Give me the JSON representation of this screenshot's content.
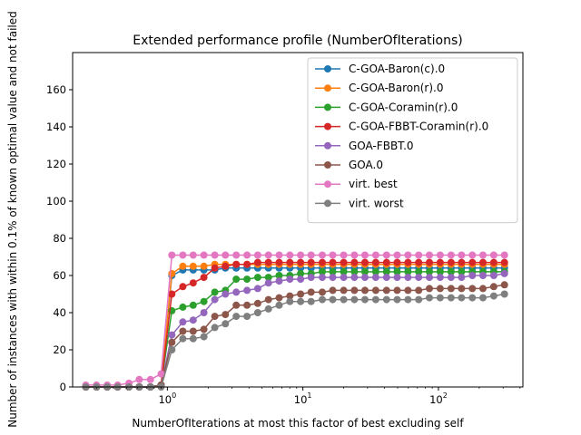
{
  "chart_data": {
    "type": "line",
    "title": "Extended performance profile (NumberOfIterations)",
    "xlabel": "NumberOfIterations at most this factor of best excluding self",
    "ylabel": "Number of instances with within 0.1% of known optimal value and not failed",
    "x_scale": "log",
    "xlim": [
      0.2,
      420
    ],
    "ylim": [
      0,
      180
    ],
    "grid": false,
    "legend_position": "top-right",
    "x_ticks": [
      {
        "value": 1,
        "base": "10",
        "exp": "0"
      },
      {
        "value": 10,
        "base": "10",
        "exp": "1"
      },
      {
        "value": 100,
        "base": "10",
        "exp": "2"
      }
    ],
    "y_ticks": [
      0,
      20,
      40,
      60,
      80,
      100,
      120,
      140,
      160
    ],
    "x": [
      0.25,
      0.3,
      0.36,
      0.43,
      0.52,
      0.62,
      0.75,
      0.9,
      1.08,
      1.3,
      1.55,
      1.86,
      2.24,
      2.68,
      3.22,
      3.87,
      4.64,
      5.57,
      6.68,
      8.02,
      9.62,
      11.5,
      13.9,
      16.6,
      20,
      24,
      28.7,
      34.5,
      41.4,
      49.6,
      59.6,
      71.5,
      85.8,
      103,
      124,
      148,
      178,
      213,
      256,
      307
    ],
    "series": [
      {
        "name": "C-GOA-Baron(c).0",
        "color": "#1f77b4",
        "values": [
          0,
          0,
          0,
          0,
          0,
          0,
          0,
          1,
          60,
          63,
          63,
          63,
          63,
          64,
          64,
          64,
          64,
          64,
          64,
          64,
          64,
          64,
          64,
          64,
          64,
          64,
          64,
          64,
          64,
          64,
          64,
          64,
          64,
          64,
          64,
          64,
          64,
          64,
          64,
          64
        ]
      },
      {
        "name": "C-GOA-Baron(r).0",
        "color": "#ff7f0e",
        "values": [
          0,
          0,
          0,
          0,
          0,
          0,
          0,
          1,
          61,
          65,
          65,
          65,
          66,
          66,
          66,
          66,
          66,
          66,
          66,
          66,
          66,
          66,
          66,
          66,
          66,
          66,
          66,
          66,
          66,
          66,
          66,
          66,
          66,
          66,
          66,
          66,
          66,
          66,
          66,
          66
        ]
      },
      {
        "name": "C-GOA-Coramin(r).0",
        "color": "#2ca02c",
        "values": [
          0,
          0,
          0,
          0,
          0,
          0,
          0,
          1,
          41,
          43,
          44,
          46,
          51,
          52,
          58,
          58,
          59,
          59,
          60,
          60,
          61,
          61,
          62,
          62,
          62,
          62,
          62,
          62,
          62,
          62,
          62,
          62,
          62,
          62,
          62,
          62,
          62,
          62,
          62,
          62
        ]
      },
      {
        "name": "C-GOA-FBBT-Coramin(r).0",
        "color": "#d62728",
        "values": [
          0,
          0,
          0,
          0,
          0,
          0,
          0,
          1,
          50,
          54,
          56,
          59,
          64,
          65,
          66,
          66,
          67,
          67,
          67,
          67,
          67,
          67,
          67,
          67,
          67,
          67,
          67,
          67,
          67,
          67,
          67,
          67,
          67,
          67,
          67,
          67,
          67,
          67,
          67,
          67
        ]
      },
      {
        "name": "GOA-FBBT.0",
        "color": "#9467bd",
        "values": [
          0,
          0,
          0,
          0,
          0,
          0,
          0,
          1,
          28,
          35,
          36,
          40,
          47,
          50,
          51,
          52,
          53,
          56,
          57,
          58,
          58,
          59,
          59,
          59,
          59,
          59,
          59,
          59,
          59,
          59,
          59,
          59,
          59,
          59,
          59,
          59,
          60,
          60,
          60,
          61
        ]
      },
      {
        "name": "GOA.0",
        "color": "#8c564b",
        "values": [
          0,
          0,
          0,
          0,
          0,
          0,
          0,
          1,
          24,
          30,
          30,
          31,
          38,
          39,
          44,
          44,
          45,
          47,
          48,
          49,
          50,
          51,
          51,
          52,
          52,
          52,
          52,
          52,
          52,
          52,
          52,
          52,
          53,
          53,
          53,
          53,
          53,
          53,
          54,
          55
        ]
      },
      {
        "name": "virt. best",
        "color": "#e377c2",
        "values": [
          1,
          1,
          1,
          1,
          2,
          4,
          4,
          7,
          71,
          71,
          71,
          71,
          71,
          71,
          71,
          71,
          71,
          71,
          71,
          71,
          71,
          71,
          71,
          71,
          71,
          71,
          71,
          71,
          71,
          71,
          71,
          71,
          71,
          71,
          71,
          71,
          71,
          71,
          71,
          71
        ]
      },
      {
        "name": "virt. worst",
        "color": "#7f7f7f",
        "values": [
          0,
          0,
          0,
          0,
          0,
          0,
          0,
          0,
          20,
          26,
          26,
          27,
          32,
          34,
          38,
          38,
          40,
          42,
          44,
          46,
          46,
          46,
          47,
          47,
          47,
          47,
          47,
          47,
          47,
          47,
          47,
          47,
          48,
          48,
          48,
          48,
          48,
          48,
          49,
          50
        ]
      }
    ]
  }
}
